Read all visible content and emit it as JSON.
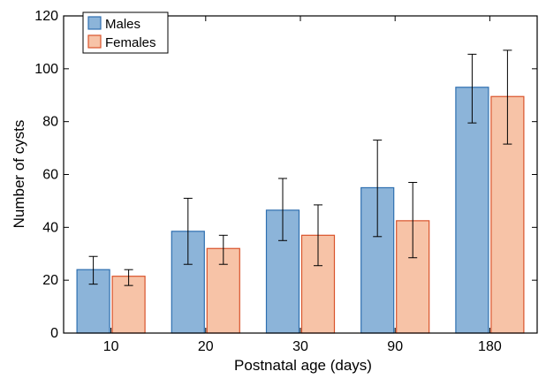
{
  "chart_data": {
    "type": "bar",
    "xlabel": "Postnatal age (days)",
    "ylabel": "Number of cysts",
    "ylim": [
      0,
      120
    ],
    "yticks": [
      0,
      20,
      40,
      60,
      80,
      100,
      120
    ],
    "categories": [
      "10",
      "20",
      "30",
      "90",
      "180"
    ],
    "series": [
      {
        "name": "Males",
        "color": "#8cb4d9",
        "edge": "#2e6fb0",
        "values": [
          24,
          38.5,
          46.5,
          55,
          93
        ],
        "err_low": [
          18.5,
          26,
          35,
          36.5,
          79.5
        ],
        "err_high": [
          29,
          51,
          58.5,
          73,
          105.5
        ]
      },
      {
        "name": "Females",
        "color": "#f7c3a7",
        "edge": "#d9532b",
        "values": [
          21.5,
          32,
          37,
          42.5,
          89.5
        ],
        "err_low": [
          18,
          26,
          25.5,
          28.5,
          71.5
        ],
        "err_high": [
          24,
          37,
          48.5,
          57,
          107
        ]
      }
    ],
    "legend": {
      "position": "top-left"
    }
  }
}
